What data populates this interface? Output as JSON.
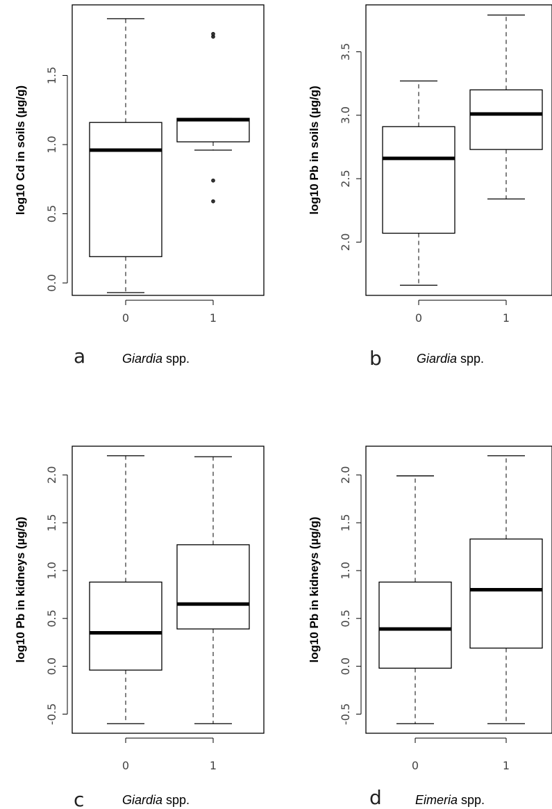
{
  "chart_data": [
    {
      "type": "boxplot",
      "panel": "a",
      "ylabel": "log10 Cd in soils (µg/g)",
      "xlabel_genus": "Giardia",
      "xlabel_suffix": " spp.",
      "categories": [
        "0",
        "1"
      ],
      "yticks": [
        "0.0",
        "0.5",
        "1.0",
        "1.5"
      ],
      "ylim": [
        -0.09,
        2.01
      ],
      "boxes": [
        {
          "category": "0",
          "whisker_low": -0.07,
          "q1": 0.19,
          "median": 0.96,
          "q3": 1.16,
          "whisker_high": 1.91,
          "outliers": []
        },
        {
          "category": "1",
          "whisker_low": 0.96,
          "q1": 1.02,
          "median": 1.18,
          "q3": 1.19,
          "whisker_high": 1.19,
          "outliers": [
            0.59,
            0.74,
            1.78,
            1.8
          ]
        }
      ]
    },
    {
      "type": "boxplot",
      "panel": "b",
      "ylabel": "log10 Pb in soils (µg/g)",
      "xlabel_genus": "Giardia",
      "xlabel_suffix": " spp.",
      "categories": [
        "0",
        "1"
      ],
      "yticks": [
        "2.0",
        "2.5",
        "3.0",
        "3.5"
      ],
      "ylim": [
        1.58,
        3.87
      ],
      "boxes": [
        {
          "category": "0",
          "whisker_low": 1.66,
          "q1": 2.07,
          "median": 2.66,
          "q3": 2.91,
          "whisker_high": 3.27,
          "outliers": []
        },
        {
          "category": "1",
          "whisker_low": 2.34,
          "q1": 2.73,
          "median": 3.01,
          "q3": 3.2,
          "whisker_high": 3.79,
          "outliers": []
        }
      ]
    },
    {
      "type": "boxplot",
      "panel": "c",
      "ylabel": "log10 Pb in kidneys (µg/g)",
      "xlabel_genus": "Giardia",
      "xlabel_suffix": " spp.",
      "categories": [
        "0",
        "1"
      ],
      "yticks": [
        "-0.5",
        "0.0",
        "0.5",
        "1.0",
        "1.5",
        "2.0"
      ],
      "ylim": [
        -0.7,
        2.3
      ],
      "boxes": [
        {
          "category": "0",
          "whisker_low": -0.6,
          "q1": -0.04,
          "median": 0.35,
          "q3": 0.88,
          "whisker_high": 2.2,
          "outliers": []
        },
        {
          "category": "1",
          "whisker_low": -0.6,
          "q1": 0.39,
          "median": 0.65,
          "q3": 1.27,
          "whisker_high": 2.19,
          "outliers": []
        }
      ]
    },
    {
      "type": "boxplot",
      "panel": "d",
      "ylabel": "log10 Pb in kidneys (µg/g)",
      "xlabel_genus": "Eimeria",
      "xlabel_suffix": " spp.",
      "categories": [
        "0",
        "1"
      ],
      "yticks": [
        "-0.5",
        "0.0",
        "0.5",
        "1.0",
        "1.5",
        "2.0"
      ],
      "ylim": [
        -0.7,
        2.3
      ],
      "boxes": [
        {
          "category": "0",
          "whisker_low": -0.6,
          "q1": -0.02,
          "median": 0.39,
          "q3": 0.88,
          "whisker_high": 1.99,
          "outliers": []
        },
        {
          "category": "1",
          "whisker_low": -0.6,
          "q1": 0.19,
          "median": 0.8,
          "q3": 1.33,
          "whisker_high": 2.2,
          "outliers": []
        }
      ]
    }
  ]
}
